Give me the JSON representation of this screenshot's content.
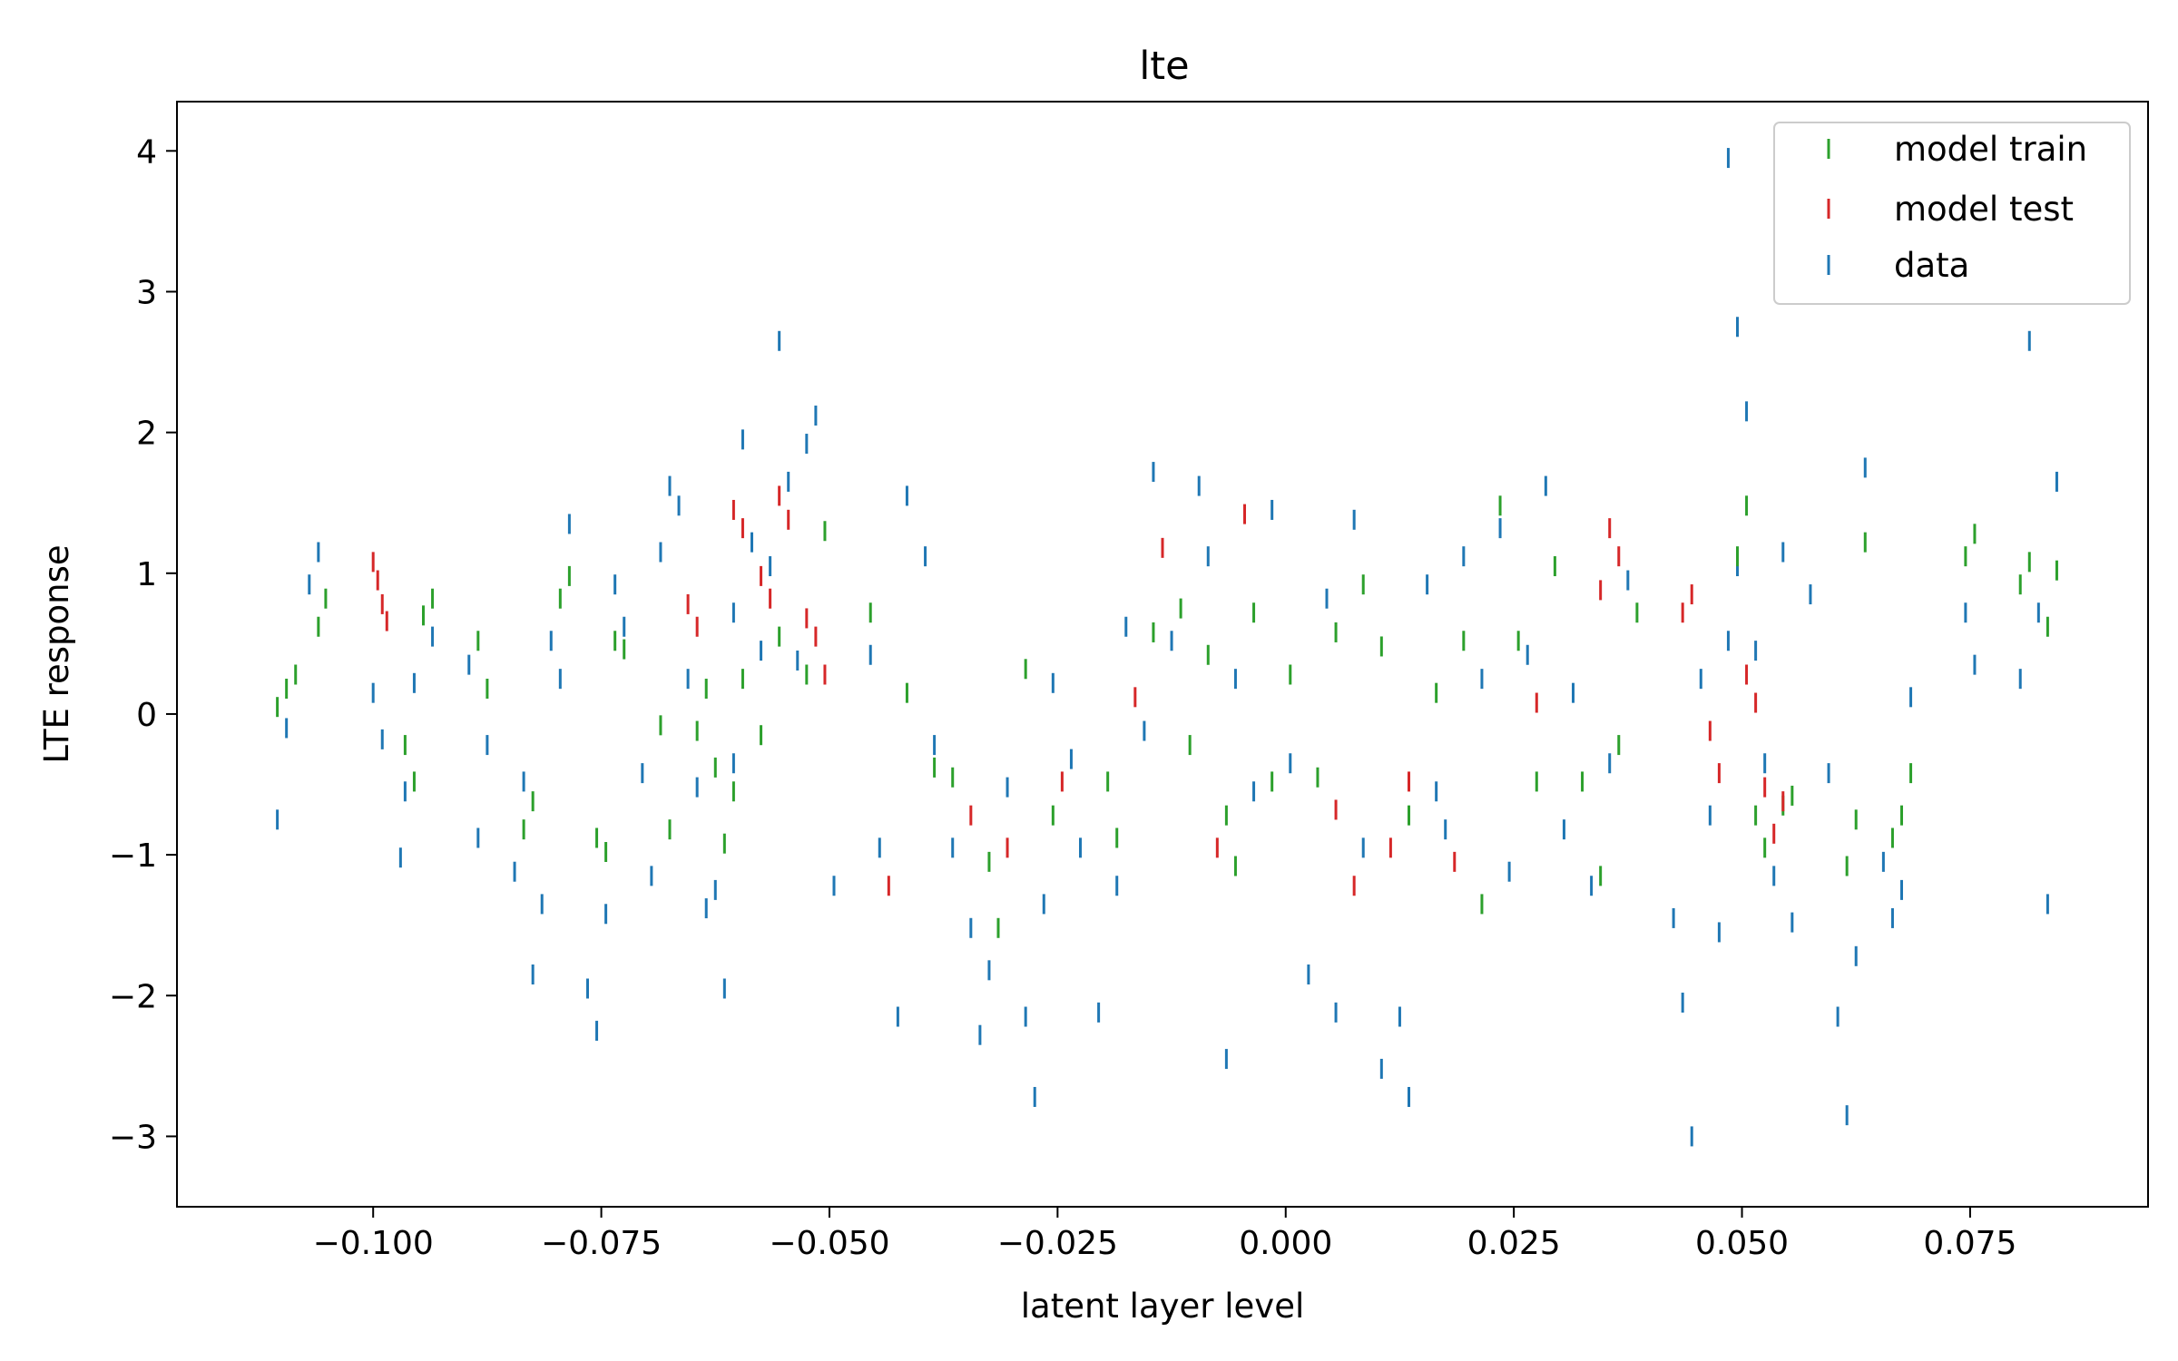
{
  "chart_data": {
    "type": "scatter",
    "title": "lte",
    "xlabel": "latent layer level",
    "ylabel": "LTE response",
    "xlim": [
      -0.1215,
      0.0945
    ],
    "ylim": [
      -3.5,
      4.35
    ],
    "x_ticks": [
      -0.1,
      -0.075,
      -0.05,
      -0.025,
      0.0,
      0.025,
      0.05,
      0.075
    ],
    "x_tick_labels": [
      "−0.100",
      "−0.075",
      "−0.050",
      "−0.025",
      "0.000",
      "0.025",
      "0.050",
      "0.075"
    ],
    "y_ticks": [
      -3,
      -2,
      -1,
      0,
      1,
      2,
      3,
      4
    ],
    "y_tick_labels": [
      "−3",
      "−2",
      "−1",
      "0",
      "1",
      "2",
      "3",
      "4"
    ],
    "grid": false,
    "legend_position": "top-right",
    "marker": "vertical line",
    "series": [
      {
        "name": "model train",
        "color": "#2ca02c",
        "points": [
          [
            -0.1105,
            0.05
          ],
          [
            -0.1095,
            0.18
          ],
          [
            -0.1085,
            0.28
          ],
          [
            -0.106,
            0.62
          ],
          [
            -0.1052,
            0.82
          ],
          [
            -0.0965,
            -0.22
          ],
          [
            -0.0955,
            -0.48
          ],
          [
            -0.0945,
            0.7
          ],
          [
            -0.0935,
            0.82
          ],
          [
            -0.0885,
            0.52
          ],
          [
            -0.0875,
            0.18
          ],
          [
            -0.0835,
            -0.82
          ],
          [
            -0.0825,
            -0.62
          ],
          [
            -0.0795,
            0.82
          ],
          [
            -0.0785,
            0.98
          ],
          [
            -0.0755,
            -0.88
          ],
          [
            -0.0745,
            -0.98
          ],
          [
            -0.0735,
            0.52
          ],
          [
            -0.0725,
            0.46
          ],
          [
            -0.0685,
            -0.08
          ],
          [
            -0.0675,
            -0.82
          ],
          [
            -0.0645,
            -0.12
          ],
          [
            -0.0635,
            0.18
          ],
          [
            -0.0625,
            -0.38
          ],
          [
            -0.0615,
            -0.92
          ],
          [
            -0.0605,
            -0.55
          ],
          [
            -0.0595,
            0.25
          ],
          [
            -0.0575,
            -0.15
          ],
          [
            -0.0555,
            0.55
          ],
          [
            -0.0525,
            0.28
          ],
          [
            -0.0505,
            1.3
          ],
          [
            -0.0455,
            0.72
          ],
          [
            -0.0415,
            0.15
          ],
          [
            -0.0385,
            -0.38
          ],
          [
            -0.0365,
            -0.45
          ],
          [
            -0.0325,
            -1.05
          ],
          [
            -0.0315,
            -1.52
          ],
          [
            -0.0285,
            0.32
          ],
          [
            -0.0255,
            -0.72
          ],
          [
            -0.0195,
            -0.48
          ],
          [
            -0.0185,
            -0.88
          ],
          [
            -0.0145,
            0.58
          ],
          [
            -0.0115,
            0.75
          ],
          [
            -0.0105,
            -0.22
          ],
          [
            -0.0085,
            0.42
          ],
          [
            -0.0065,
            -0.72
          ],
          [
            -0.0055,
            -1.08
          ],
          [
            -0.0035,
            0.72
          ],
          [
            -0.0015,
            -0.48
          ],
          [
            0.0005,
            0.28
          ],
          [
            0.0035,
            -0.45
          ],
          [
            0.0055,
            0.58
          ],
          [
            0.0085,
            0.92
          ],
          [
            0.0105,
            0.48
          ],
          [
            0.0135,
            -0.72
          ],
          [
            0.0165,
            0.15
          ],
          [
            0.0195,
            0.52
          ],
          [
            0.0215,
            -1.35
          ],
          [
            0.0235,
            1.48
          ],
          [
            0.0255,
            0.52
          ],
          [
            0.0275,
            -0.48
          ],
          [
            0.0295,
            1.05
          ],
          [
            0.0325,
            -0.48
          ],
          [
            0.0345,
            -1.15
          ],
          [
            0.0365,
            -0.22
          ],
          [
            0.0385,
            0.72
          ],
          [
            0.0495,
            1.12
          ],
          [
            0.0505,
            1.48
          ],
          [
            0.0515,
            -0.72
          ],
          [
            0.0525,
            -0.95
          ],
          [
            0.0545,
            -0.65
          ],
          [
            0.0555,
            -0.58
          ],
          [
            0.0615,
            -1.08
          ],
          [
            0.0625,
            -0.75
          ],
          [
            0.0635,
            1.22
          ],
          [
            0.0665,
            -0.88
          ],
          [
            0.0675,
            -0.72
          ],
          [
            0.0685,
            -0.42
          ],
          [
            0.0745,
            1.12
          ],
          [
            0.0755,
            1.28
          ],
          [
            0.0805,
            0.92
          ],
          [
            0.0815,
            1.08
          ],
          [
            0.0835,
            0.62
          ],
          [
            0.0845,
            1.02
          ]
        ]
      },
      {
        "name": "model test",
        "color": "#d62728",
        "points": [
          [
            -0.1,
            1.08
          ],
          [
            -0.0995,
            0.95
          ],
          [
            -0.099,
            0.78
          ],
          [
            -0.0985,
            0.66
          ],
          [
            -0.0655,
            0.78
          ],
          [
            -0.0645,
            0.62
          ],
          [
            -0.0605,
            1.45
          ],
          [
            -0.0595,
            1.32
          ],
          [
            -0.0575,
            0.98
          ],
          [
            -0.0565,
            0.82
          ],
          [
            -0.0555,
            1.55
          ],
          [
            -0.0545,
            1.38
          ],
          [
            -0.0525,
            0.68
          ],
          [
            -0.0515,
            0.55
          ],
          [
            -0.0505,
            0.28
          ],
          [
            -0.0435,
            -1.22
          ],
          [
            -0.0345,
            -0.72
          ],
          [
            -0.0305,
            -0.95
          ],
          [
            -0.0245,
            -0.48
          ],
          [
            -0.0165,
            0.12
          ],
          [
            -0.0135,
            1.18
          ],
          [
            -0.0075,
            -0.95
          ],
          [
            -0.0045,
            1.42
          ],
          [
            0.0055,
            -0.68
          ],
          [
            0.0075,
            -1.22
          ],
          [
            0.0115,
            -0.95
          ],
          [
            0.0135,
            -0.48
          ],
          [
            0.0185,
            -1.05
          ],
          [
            0.0275,
            0.08
          ],
          [
            0.0345,
            0.88
          ],
          [
            0.0355,
            1.32
          ],
          [
            0.0365,
            1.12
          ],
          [
            0.0435,
            0.72
          ],
          [
            0.0445,
            0.85
          ],
          [
            0.0465,
            -0.12
          ],
          [
            0.0475,
            -0.42
          ],
          [
            0.0505,
            0.28
          ],
          [
            0.0515,
            0.08
          ],
          [
            0.0525,
            -0.52
          ],
          [
            0.0535,
            -0.85
          ],
          [
            0.0545,
            -0.62
          ]
        ]
      },
      {
        "name": "data",
        "color": "#1f77b4",
        "points": [
          [
            -0.1105,
            -0.75
          ],
          [
            -0.1095,
            -0.1
          ],
          [
            -0.107,
            0.92
          ],
          [
            -0.106,
            1.15
          ],
          [
            -0.1,
            0.15
          ],
          [
            -0.099,
            -0.18
          ],
          [
            -0.097,
            -1.02
          ],
          [
            -0.0965,
            -0.55
          ],
          [
            -0.0955,
            0.22
          ],
          [
            -0.0935,
            0.55
          ],
          [
            -0.0895,
            0.35
          ],
          [
            -0.0885,
            -0.88
          ],
          [
            -0.0875,
            -0.22
          ],
          [
            -0.0845,
            -1.12
          ],
          [
            -0.0835,
            -0.48
          ],
          [
            -0.0825,
            -1.85
          ],
          [
            -0.0815,
            -1.35
          ],
          [
            -0.0805,
            0.52
          ],
          [
            -0.0795,
            0.25
          ],
          [
            -0.0785,
            1.35
          ],
          [
            -0.0765,
            -1.95
          ],
          [
            -0.0755,
            -2.25
          ],
          [
            -0.0745,
            -1.42
          ],
          [
            -0.0735,
            0.92
          ],
          [
            -0.0725,
            0.62
          ],
          [
            -0.0705,
            -0.42
          ],
          [
            -0.0695,
            -1.15
          ],
          [
            -0.0685,
            1.15
          ],
          [
            -0.0675,
            1.62
          ],
          [
            -0.0665,
            1.48
          ],
          [
            -0.0655,
            0.25
          ],
          [
            -0.0645,
            -0.52
          ],
          [
            -0.0635,
            -1.38
          ],
          [
            -0.0625,
            -1.25
          ],
          [
            -0.0615,
            -1.95
          ],
          [
            -0.0605,
            0.72
          ],
          [
            -0.0595,
            1.95
          ],
          [
            -0.0585,
            1.22
          ],
          [
            -0.0575,
            0.45
          ],
          [
            -0.0565,
            1.05
          ],
          [
            -0.0555,
            2.65
          ],
          [
            -0.0545,
            1.65
          ],
          [
            -0.0535,
            0.38
          ],
          [
            -0.0525,
            1.92
          ],
          [
            -0.0515,
            2.12
          ],
          [
            -0.0495,
            -1.22
          ],
          [
            -0.0455,
            0.42
          ],
          [
            -0.0445,
            -0.95
          ],
          [
            -0.0425,
            -2.15
          ],
          [
            -0.0415,
            1.55
          ],
          [
            -0.0395,
            1.12
          ],
          [
            -0.0385,
            -0.22
          ],
          [
            -0.0365,
            -0.95
          ],
          [
            -0.0345,
            -1.52
          ],
          [
            -0.0335,
            -2.28
          ],
          [
            -0.0325,
            -1.82
          ],
          [
            -0.0305,
            -0.52
          ],
          [
            -0.0285,
            -2.15
          ],
          [
            -0.0275,
            -2.72
          ],
          [
            -0.0265,
            -1.35
          ],
          [
            -0.0255,
            0.22
          ],
          [
            -0.0235,
            -0.32
          ],
          [
            -0.0225,
            -0.95
          ],
          [
            -0.0205,
            -2.12
          ],
          [
            -0.0185,
            -1.22
          ],
          [
            -0.0175,
            0.62
          ],
          [
            -0.0155,
            -0.12
          ],
          [
            -0.0145,
            1.72
          ],
          [
            -0.0125,
            0.52
          ],
          [
            -0.0095,
            1.62
          ],
          [
            -0.0085,
            1.12
          ],
          [
            -0.0065,
            -2.45
          ],
          [
            -0.0055,
            0.25
          ],
          [
            -0.0035,
            -0.55
          ],
          [
            -0.0015,
            1.45
          ],
          [
            0.0005,
            -0.35
          ],
          [
            0.0025,
            -1.85
          ],
          [
            0.0045,
            0.82
          ],
          [
            0.0055,
            -2.12
          ],
          [
            0.0075,
            1.38
          ],
          [
            0.0085,
            -0.95
          ],
          [
            0.0105,
            -2.52
          ],
          [
            0.0125,
            -2.15
          ],
          [
            0.0135,
            -2.72
          ],
          [
            0.0155,
            0.92
          ],
          [
            0.0175,
            -0.82
          ],
          [
            0.0195,
            1.12
          ],
          [
            0.0215,
            0.25
          ],
          [
            0.0235,
            1.32
          ],
          [
            0.0245,
            -1.12
          ],
          [
            0.0265,
            0.42
          ],
          [
            0.0285,
            1.62
          ],
          [
            0.0305,
            -0.82
          ],
          [
            0.0315,
            0.15
          ],
          [
            0.0335,
            -1.22
          ],
          [
            0.0355,
            -0.35
          ],
          [
            0.0375,
            0.95
          ],
          [
            0.0425,
            -1.45
          ],
          [
            0.0435,
            -2.05
          ],
          [
            0.0445,
            -3.0
          ],
          [
            0.0455,
            0.25
          ],
          [
            0.0465,
            -0.72
          ],
          [
            0.0475,
            -1.55
          ],
          [
            0.0485,
            0.52
          ],
          [
            0.0495,
            2.75
          ],
          [
            0.0505,
            2.15
          ],
          [
            0.0515,
            0.45
          ],
          [
            0.0525,
            -0.35
          ],
          [
            0.0535,
            -1.15
          ],
          [
            0.0545,
            1.15
          ],
          [
            0.0555,
            -1.48
          ],
          [
            0.0575,
            0.85
          ],
          [
            0.0595,
            -0.42
          ],
          [
            0.0605,
            -2.15
          ],
          [
            0.0615,
            -2.85
          ],
          [
            0.0625,
            -1.72
          ],
          [
            0.0635,
            1.75
          ],
          [
            0.0655,
            -1.05
          ],
          [
            0.0665,
            -1.45
          ],
          [
            0.0675,
            -1.25
          ],
          [
            0.0685,
            0.12
          ],
          [
            0.0745,
            0.72
          ],
          [
            0.0755,
            0.35
          ],
          [
            0.0805,
            0.25
          ],
          [
            0.0815,
            2.65
          ],
          [
            0.0825,
            0.72
          ],
          [
            0.0835,
            -1.35
          ],
          [
            0.0845,
            1.65
          ],
          [
            0.0485,
            3.95
          ],
          [
            0.0495,
            1.05
          ],
          [
            -0.0605,
            -0.35
          ],
          [
            0.0165,
            -0.55
          ]
        ]
      }
    ]
  }
}
